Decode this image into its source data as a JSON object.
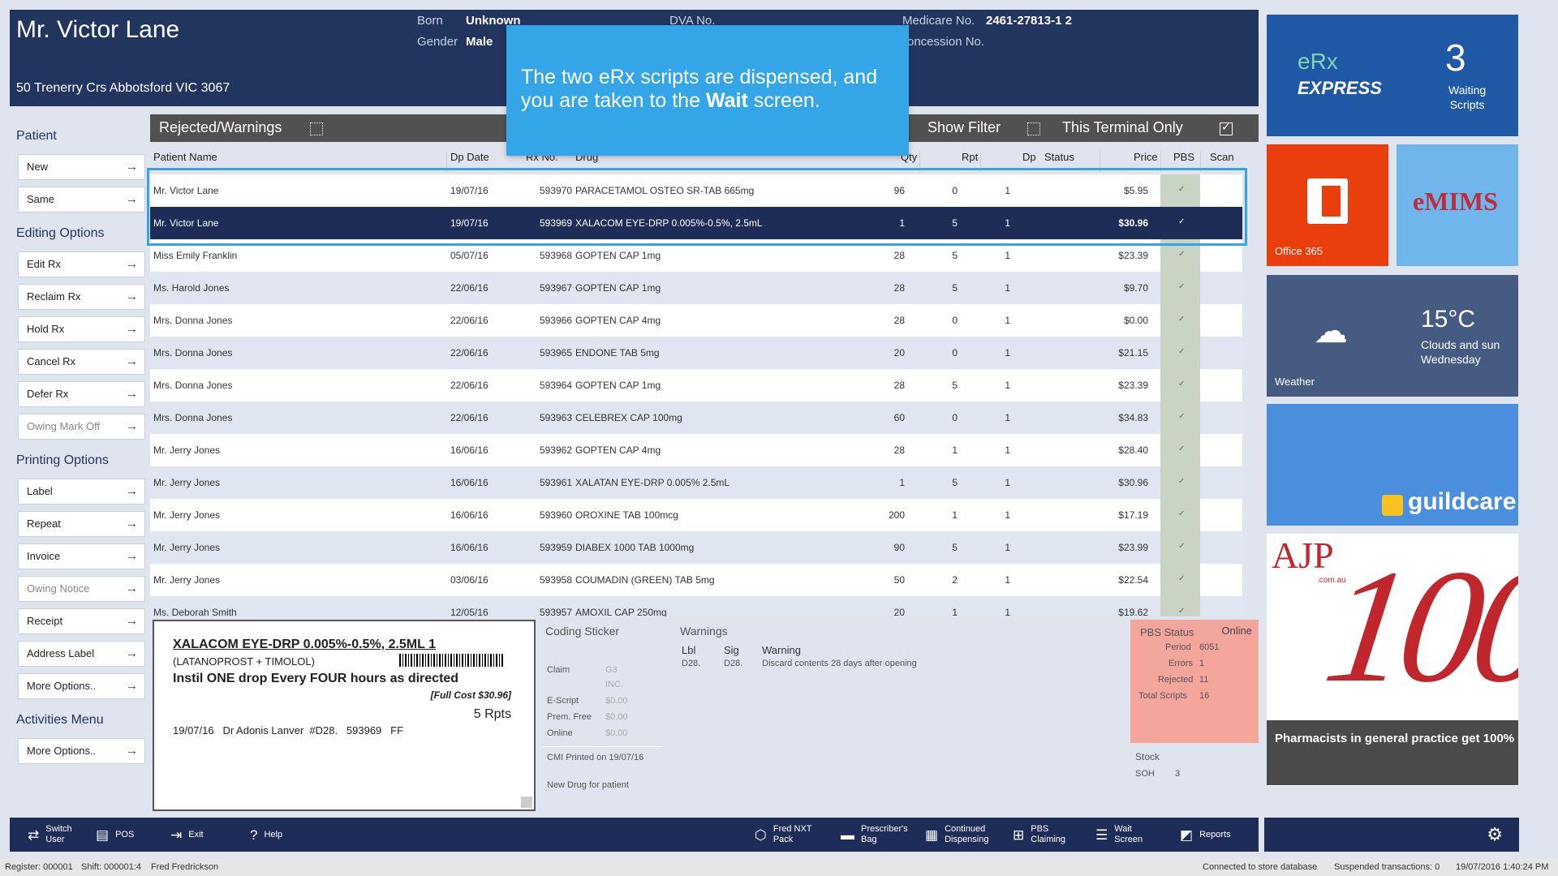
{
  "header": {
    "patient_name": "Mr. Victor Lane",
    "address": "50 Trenerry Crs Abbotsford VIC 3067",
    "born_label": "Born",
    "born_value": "Unknown",
    "gender_label": "Gender",
    "gender_value": "Male",
    "dva_label": "DVA No.",
    "medicare_label": "Medicare No.",
    "medicare_value": "2461-27813-1 2",
    "concession_label": "oncession No."
  },
  "callout": {
    "text_part1": "The two eRx scripts are dispensed, and you are taken to the ",
    "text_bold": "Wait",
    "text_part2": " screen."
  },
  "nav": {
    "patient_title": "Patient",
    "new": "New",
    "same": "Same",
    "editing_title": "Editing Options",
    "edit_rx": "Edit Rx",
    "reclaim_rx": "Reclaim Rx",
    "hold_rx": "Hold Rx",
    "cancel_rx": "Cancel Rx",
    "defer_rx": "Defer Rx",
    "owing_mark_off": "Owing Mark Off",
    "printing_title": "Printing Options",
    "label": "Label",
    "repeat": "Repeat",
    "invoice": "Invoice",
    "owing_notice": "Owing Notice",
    "receipt": "Receipt",
    "address_label": "Address Label",
    "more_options": "More Options..",
    "activities_title": "Activities Menu",
    "more_options2": "More Options.."
  },
  "grid": {
    "title": "Rejected/Warnings",
    "show_filter": "Show Filter",
    "terminal_only": "This Terminal Only",
    "columns": {
      "patient": "Patient Name",
      "dp_date": "Dp Date",
      "rx_no": "Rx No.",
      "drug": "Drug",
      "qty": "Qty",
      "rpt": "Rpt",
      "dp": "Dp",
      "status": "Status",
      "price": "Price",
      "pbs": "PBS",
      "scan": "Scan"
    },
    "rows": [
      {
        "name": "Mr. Victor Lane",
        "date": "19/07/16",
        "rx": "593970",
        "drug": "PARACETAMOL OSTEO SR-TAB 665mg",
        "qty": "96",
        "rpt": "0",
        "dp": "1",
        "price": "$5.95",
        "pbs": "✓"
      },
      {
        "name": "Mr. Victor Lane",
        "date": "19/07/16",
        "rx": "593969",
        "drug": "XALACOM EYE-DRP 0.005%-0.5%, 2.5mL",
        "qty": "1",
        "rpt": "5",
        "dp": "1",
        "price": "$30.96",
        "pbs": "✓"
      },
      {
        "name": "Miss Emily Franklin",
        "date": "05/07/16",
        "rx": "593968",
        "drug": "GOPTEN CAP 1mg",
        "qty": "28",
        "rpt": "5",
        "dp": "1",
        "price": "$23.39",
        "pbs": "✓"
      },
      {
        "name": "Ms. Harold Jones",
        "date": "22/06/16",
        "rx": "593967",
        "drug": "GOPTEN CAP 1mg",
        "qty": "28",
        "rpt": "5",
        "dp": "1",
        "price": "$9.70",
        "pbs": "✓"
      },
      {
        "name": "Mrs. Donna Jones",
        "date": "22/06/16",
        "rx": "593966",
        "drug": "GOPTEN CAP 4mg",
        "qty": "28",
        "rpt": "0",
        "dp": "1",
        "price": "$0.00",
        "pbs": "✓"
      },
      {
        "name": "Mrs. Donna Jones",
        "date": "22/06/16",
        "rx": "593965",
        "drug": "ENDONE TAB 5mg",
        "qty": "20",
        "rpt": "0",
        "dp": "1",
        "price": "$21.15",
        "pbs": "✓"
      },
      {
        "name": "Mrs. Donna Jones",
        "date": "22/06/16",
        "rx": "593964",
        "drug": "GOPTEN CAP 1mg",
        "qty": "28",
        "rpt": "5",
        "dp": "1",
        "price": "$23.39",
        "pbs": "✓"
      },
      {
        "name": "Mrs. Donna Jones",
        "date": "22/06/16",
        "rx": "593963",
        "drug": "CELEBREX CAP 100mg",
        "qty": "60",
        "rpt": "0",
        "dp": "1",
        "price": "$34.83",
        "pbs": "✓"
      },
      {
        "name": "Mr. Jerry Jones",
        "date": "16/06/16",
        "rx": "593962",
        "drug": "GOPTEN CAP 4mg",
        "qty": "28",
        "rpt": "1",
        "dp": "1",
        "price": "$28.40",
        "pbs": "✓"
      },
      {
        "name": "Mr. Jerry Jones",
        "date": "16/06/16",
        "rx": "593961",
        "drug": "XALATAN EYE-DRP 0.005% 2.5mL",
        "qty": "1",
        "rpt": "5",
        "dp": "1",
        "price": "$30.96",
        "pbs": "✓"
      },
      {
        "name": "Mr. Jerry Jones",
        "date": "16/06/16",
        "rx": "593960",
        "drug": "OROXINE TAB 100mcg",
        "qty": "200",
        "rpt": "1",
        "dp": "1",
        "price": "$17.19",
        "pbs": "✓"
      },
      {
        "name": "Mr. Jerry Jones",
        "date": "16/06/16",
        "rx": "593959",
        "drug": "DIABEX 1000 TAB 1000mg",
        "qty": "90",
        "rpt": "5",
        "dp": "1",
        "price": "$23.99",
        "pbs": "✓"
      },
      {
        "name": "Mr. Jerry Jones",
        "date": "03/06/16",
        "rx": "593958",
        "drug": "COUMADIN (GREEN) TAB 5mg",
        "qty": "50",
        "rpt": "2",
        "dp": "1",
        "price": "$22.54",
        "pbs": "✓"
      },
      {
        "name": "Ms. Deborah Smith",
        "date": "12/05/16",
        "rx": "593957",
        "drug": "AMOXIL CAP 250mg",
        "qty": "20",
        "rpt": "1",
        "dp": "1",
        "price": "$19.62",
        "pbs": "✓"
      }
    ]
  },
  "label_panel": {
    "drug_line": "XALACOM EYE-DRP 0.005%-0.5%, 2.5ML   1",
    "generic": "(LATANOPROST + TIMOLOL)",
    "directions": "Instil ONE drop Every FOUR hours as directed",
    "full_cost": "[Full Cost $30.96]",
    "repeats": "5 Rpts",
    "footer": "19/07/16   Dr Adonis Lanver  #D28.   593969   FF"
  },
  "coding": {
    "title": "Coding Sticker",
    "claim_label": "Claim",
    "claim_value": "G3",
    "inc": "INC.",
    "escript_label": "E-Script",
    "escript_value": "$0.00",
    "prem_label": "Prem. Free",
    "prem_value": "$0.00",
    "online_label": "Online",
    "online_value": "$0.00",
    "cmi": "CMI Printed on 19/07/16",
    "new_drug": "New Drug for patient"
  },
  "warnings": {
    "title": "Warnings",
    "lbl_head": "Lbl",
    "sig_head": "Sig",
    "warning_head": "Warning",
    "lbl": "D28.",
    "sig": "D28.",
    "warning": "Discard contents 28 days after opening"
  },
  "pbs_status": {
    "title": "PBS Status",
    "state": "Online",
    "period_label": "Period",
    "period_value": "6051",
    "errors_label": "Errors",
    "errors_value": "1",
    "rejected_label": "Rejected",
    "rejected_value": "11",
    "total_label": "Total Scripts",
    "total_value": "16"
  },
  "stock": {
    "title": "Stock",
    "soh_label": "SOH",
    "soh_value": "3"
  },
  "tiles": {
    "erx_line1": "eRx",
    "erx_line2": "EXPRESS",
    "erx_count": "3",
    "erx_waiting": "Waiting",
    "erx_scripts": "Scripts",
    "office_label": "Office 365",
    "emims_text": "eMIMS",
    "weather_temp": "15°C",
    "weather_desc1": "Clouds and sun",
    "weather_desc2": "Wednesday",
    "weather_label": "Weather",
    "guild_text": "guildcare",
    "ajp_logo": "AJP",
    "ajp_domain": ".com.au",
    "ajp_number": "100",
    "ajp_caption": "Pharmacists in general practice get 100%"
  },
  "toolbar": {
    "switch_user": "Switch\nUser",
    "pos": "POS",
    "exit": "Exit",
    "help": "Help",
    "fred_nxt": "Fred NXT\nPack",
    "prescribers_bag": "Prescriber's\nBag",
    "continued": "Continued\nDispensing",
    "pbs_claiming": "PBS\nClaiming",
    "wait_screen": "Wait\nScreen",
    "reports": "Reports"
  },
  "statusbar": {
    "register": "Register: 000001",
    "shift": "Shift: 000001:4",
    "user": "Fred Fredrickson",
    "connection": "Connected to store database",
    "suspended": "Suspended transactions: 0",
    "datetime": "19/07/2016 1:40:24 PM"
  }
}
